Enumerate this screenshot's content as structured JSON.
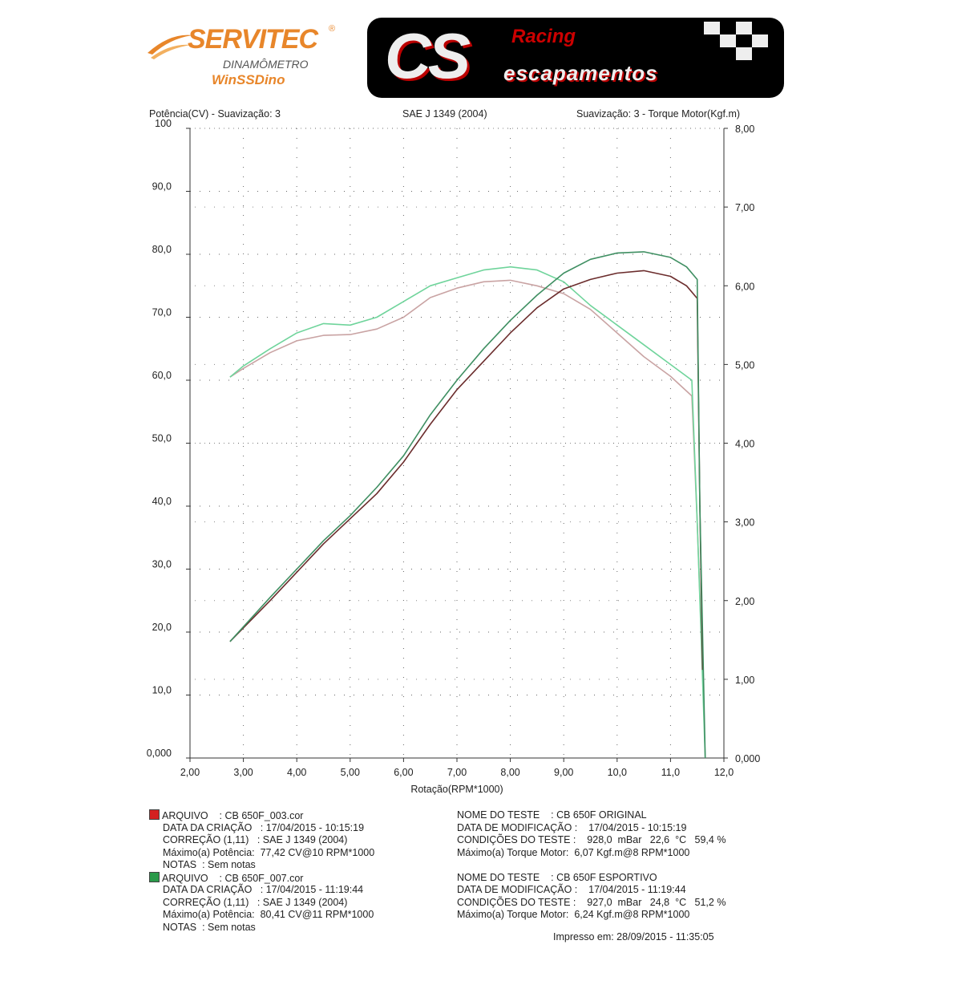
{
  "logos": {
    "servitec": {
      "name": "SERVITEC",
      "registered": "®",
      "subtitle": "DINAMÔMETRO",
      "software": "WinSSDino"
    },
    "cs": {
      "letters": "CS",
      "racing": "Racing",
      "escapamentos": "escapamentos"
    }
  },
  "header": {
    "left_axis_title": "Potência(CV) - Suavização: 3",
    "center_title": "SAE J 1349 (2004)",
    "right_axis_title": "Suavização: 3 - Torque Motor(Kgf.m)"
  },
  "chart_data": {
    "type": "line",
    "xlabel": "Rotação(RPM*1000)",
    "ylabel": "Potência(CV) - Suavização: 3",
    "y2label": "Suavização: 3 - Torque Motor(Kgf.m)",
    "xlim": [
      2,
      12
    ],
    "ylim": [
      0,
      100
    ],
    "y2lim": [
      0,
      8
    ],
    "grid": "dotted",
    "x_ticks": [
      "2,00",
      "3,00",
      "4,00",
      "5,00",
      "6,00",
      "7,00",
      "8,00",
      "9,00",
      "10,0",
      "11,0",
      "12,0"
    ],
    "y_ticks": [
      "0,000",
      "10,0",
      "20,0",
      "30,0",
      "40,0",
      "50,0",
      "60,0",
      "70,0",
      "80,0",
      "90,0",
      "100"
    ],
    "y2_ticks": [
      "0,000",
      "1,00",
      "2,00",
      "3,00",
      "4,00",
      "5,00",
      "6,00",
      "7,00",
      "8,00"
    ],
    "series": [
      {
        "file": "CB 650F_003.cor",
        "quantity": "power",
        "axis": "left",
        "color": "#6b2c2c",
        "x": [
          2.75,
          3.5,
          4.0,
          4.5,
          5.0,
          5.5,
          6.0,
          6.5,
          7.0,
          7.5,
          8.0,
          8.5,
          9.0,
          9.5,
          10.0,
          10.5,
          11.0,
          11.3,
          11.5,
          11.55,
          11.6
        ],
        "y": [
          18.5,
          25,
          29.5,
          34,
          38,
          42,
          47,
          53,
          58.5,
          63,
          67.5,
          71.5,
          74.5,
          76,
          77,
          77.4,
          76.5,
          75,
          73,
          40,
          14
        ]
      },
      {
        "file": "CB 650F_007.cor",
        "quantity": "power",
        "axis": "left",
        "color": "#3f8f62",
        "x": [
          2.75,
          3.5,
          4.0,
          4.5,
          5.0,
          5.5,
          6.0,
          6.5,
          7.0,
          7.5,
          8.0,
          8.5,
          9.0,
          9.5,
          10.0,
          10.5,
          11.0,
          11.3,
          11.5,
          11.55,
          11.65
        ],
        "y": [
          18.5,
          25.5,
          30,
          34.5,
          38.5,
          43,
          48,
          54.5,
          60,
          65,
          69.5,
          73.5,
          77,
          79.2,
          80.2,
          80.4,
          79.5,
          78,
          76,
          40,
          0
        ]
      },
      {
        "file": "CB 650F_003.cor",
        "quantity": "torque",
        "axis": "right",
        "color": "#c9a3a3",
        "x": [
          2.75,
          3.0,
          3.5,
          4.0,
          4.5,
          5.0,
          5.5,
          6.0,
          6.5,
          7.0,
          7.5,
          8.0,
          8.5,
          9.0,
          9.5,
          10.0,
          10.5,
          11.0,
          11.4,
          11.5,
          11.6
        ],
        "y": [
          4.84,
          4.95,
          5.15,
          5.3,
          5.37,
          5.38,
          5.45,
          5.6,
          5.85,
          5.97,
          6.05,
          6.07,
          6.0,
          5.9,
          5.7,
          5.4,
          5.1,
          4.85,
          4.6,
          3.0,
          1.1
        ]
      },
      {
        "file": "CB 650F_007.cor",
        "quantity": "torque",
        "axis": "right",
        "color": "#6fd49b",
        "x": [
          2.75,
          3.0,
          3.5,
          4.0,
          4.5,
          5.0,
          5.5,
          6.0,
          6.5,
          7.0,
          7.5,
          8.0,
          8.5,
          9.0,
          9.5,
          10.0,
          10.5,
          11.0,
          11.4,
          11.5,
          11.65
        ],
        "y": [
          4.84,
          4.98,
          5.2,
          5.4,
          5.52,
          5.5,
          5.6,
          5.8,
          6.0,
          6.1,
          6.2,
          6.24,
          6.2,
          6.05,
          5.75,
          5.5,
          5.25,
          5.0,
          4.8,
          3.0,
          0
        ]
      }
    ]
  },
  "legend": [
    {
      "color": "#d42020",
      "left": [
        "ARQUIVO    : CB 650F_003.cor",
        "DATA DA CRIAÇÃO   : 17/04/2015 - 10:15:19",
        "CORREÇÃO (1,11)   : SAE J 1349 (2004)",
        "Máximo(a) Potência:  77,42 CV@10 RPM*1000",
        "NOTAS  : Sem notas"
      ],
      "right": [
        "NOME DO TESTE    : CB 650F ORIGINAL",
        "DATA DE MODIFICAÇÃO :    17/04/2015 - 10:15:19",
        "CONDIÇÕES DO TESTE :    928,0  mBar   22,6  °C   59,4 %",
        "Máximo(a) Torque Motor:  6,07 Kgf.m@8 RPM*1000"
      ]
    },
    {
      "color": "#2a9a4a",
      "left": [
        "ARQUIVO    : CB 650F_007.cor",
        "DATA DA CRIAÇÃO   : 17/04/2015 - 11:19:44",
        "CORREÇÃO (1,11)   : SAE J 1349 (2004)",
        "Máximo(a) Potência:  80,41 CV@11 RPM*1000",
        "NOTAS  : Sem notas"
      ],
      "right": [
        "NOME DO TESTE    : CB 650F ESPORTIVO",
        "DATA DE MODIFICAÇÃO :    17/04/2015 - 11:19:44",
        "CONDIÇÕES DO TESTE :    927,0  mBar   24,8  °C   51,2 %",
        "Máximo(a) Torque Motor:  6,24 Kgf.m@8 RPM*1000"
      ]
    }
  ],
  "printed": "Impresso em: 28/09/2015 - 11:35:05"
}
